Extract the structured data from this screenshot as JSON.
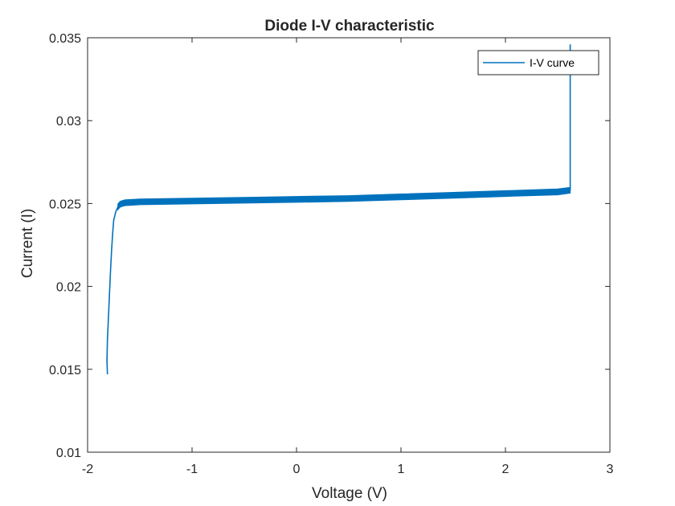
{
  "chart_data": {
    "type": "line",
    "title": "Diode I-V characteristic",
    "xlabel": "Voltage (V)",
    "ylabel": "Current (I)",
    "xlim": [
      -2,
      3
    ],
    "ylim": [
      0.01,
      0.035
    ],
    "xticks": [
      "-2",
      "-1",
      "0",
      "1",
      "2",
      "3"
    ],
    "yticks": [
      "0.01",
      "0.015",
      "0.02",
      "0.025",
      "0.03",
      "0.035"
    ],
    "grid": false,
    "legend": {
      "position": "top-right",
      "entries": [
        "I-V curve"
      ]
    },
    "series": [
      {
        "name": "I-V curve",
        "color": "#0072BD",
        "x": [
          -1.81,
          -1.815,
          -1.81,
          -1.8,
          -1.79,
          -1.78,
          -1.77,
          -1.76,
          -1.75,
          -1.73,
          -1.71,
          -1.69,
          -1.67,
          -1.64,
          -1.6,
          -1.5,
          -1.0,
          -0.5,
          0.0,
          0.5,
          1.0,
          1.5,
          2.0,
          2.5,
          2.62,
          2.62,
          2.62
        ],
        "y": [
          0.0147,
          0.0155,
          0.0168,
          0.0182,
          0.0196,
          0.021,
          0.0222,
          0.0232,
          0.024,
          0.0245,
          0.0248,
          0.02495,
          0.025,
          0.02505,
          0.02506,
          0.0251,
          0.02515,
          0.0252,
          0.02525,
          0.0253,
          0.0254,
          0.0255,
          0.0256,
          0.0257,
          0.0258,
          0.03,
          0.0346
        ],
        "band_width": 0.00035
      }
    ]
  }
}
